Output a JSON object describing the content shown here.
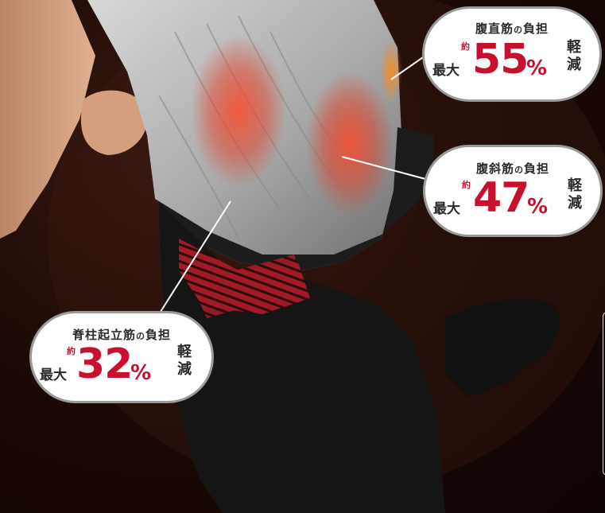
{
  "image": {
    "subject": "back-support-belt-on-person",
    "colors": {
      "background": "#1e0a06",
      "shirt": "#b8b8b8",
      "belt_strap": "#b81f2a",
      "shorts": "#1a1a1a",
      "highlight": "#c8102e",
      "bubble_border": "#9a9a9a"
    }
  },
  "callouts": [
    {
      "title_main": "腹直筋",
      "title_no": "の",
      "title_tail": "負担",
      "prefix": "最大",
      "approx": "約",
      "value": "55",
      "percent": "%",
      "suffix": "軽減"
    },
    {
      "title_main": "腹斜筋",
      "title_no": "の",
      "title_tail": "負担",
      "prefix": "最大",
      "approx": "約",
      "value": "47",
      "percent": "%",
      "suffix": "軽減"
    },
    {
      "title_main": "脊柱起立筋",
      "title_no": "の",
      "title_tail": "負担",
      "prefix": "最大",
      "approx": "約",
      "value": "32",
      "percent": "%",
      "suffix": "軽減"
    }
  ]
}
